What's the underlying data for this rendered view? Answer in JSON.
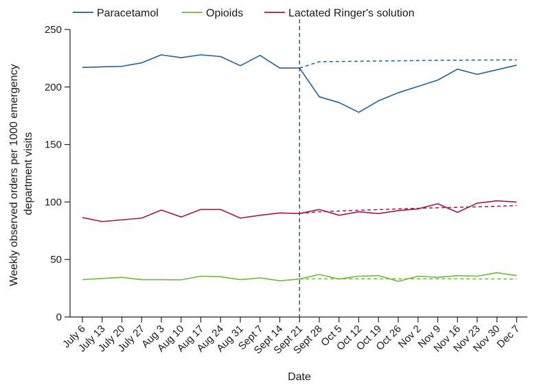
{
  "chart_data": {
    "type": "line",
    "title": "",
    "xlabel": "Date",
    "ylabel_lines": [
      "Weekly observed orders per 1000 emergency",
      "department visits"
    ],
    "ylim": [
      0,
      250
    ],
    "yticks": [
      0,
      50,
      100,
      150,
      200,
      250
    ],
    "grid": false,
    "legend_position": "top",
    "categories": [
      "July 6",
      "July 13",
      "July 20",
      "July 27",
      "Aug 3",
      "Aug 10",
      "Aug 17",
      "Aug 24",
      "Aug 31",
      "Sept 7",
      "Sept 14",
      "Sept 21",
      "Sept 28",
      "Oct 5",
      "Oct 12",
      "Oct 19",
      "Oct 26",
      "Nov 2",
      "Nov 9",
      "Nov 16",
      "Nov 23",
      "Nov 30",
      "Dec 7"
    ],
    "intervention_category": "Sept 21",
    "series": [
      {
        "name": "Paracetamol",
        "color": "#1f5f9a",
        "values": [
          217,
          217.5,
          218,
          221,
          228,
          225.5,
          228,
          226.5,
          218.5,
          227.5,
          216.5,
          216.5,
          191.5,
          186.5,
          178,
          188,
          195,
          200.5,
          206,
          215.5,
          211,
          215,
          219
        ],
        "expected": [
          216.5,
          222,
          222.2,
          222.4,
          222.6,
          222.8,
          223,
          223.2,
          223.3,
          223.4,
          223.5,
          223.6
        ]
      },
      {
        "name": "Opioids",
        "color": "#6fb73c",
        "values": [
          32.5,
          33.5,
          34.5,
          32.5,
          32.5,
          32.3,
          35.5,
          35,
          32.5,
          34,
          31.5,
          33,
          37,
          33,
          35.5,
          36,
          31,
          35.5,
          34.5,
          36,
          35.5,
          38.5,
          36
        ],
        "expected": [
          33,
          33.2,
          33.2,
          33.2,
          33.2,
          33.2,
          33.2,
          33.2,
          33.2,
          33.1,
          33.1,
          33
        ]
      },
      {
        "name": "Lactated Ringer's solution",
        "color": "#a8173f",
        "values": [
          86.5,
          83,
          84.5,
          86,
          93,
          87,
          93.5,
          93.5,
          86,
          88.5,
          90.5,
          90,
          93.5,
          88.5,
          91.5,
          90,
          92.5,
          94,
          98.5,
          91,
          99,
          101,
          100
        ],
        "expected": [
          90,
          91.5,
          92.2,
          92.8,
          93.4,
          94,
          94.5,
          95,
          95.4,
          95.8,
          96.3,
          97
        ]
      }
    ]
  }
}
